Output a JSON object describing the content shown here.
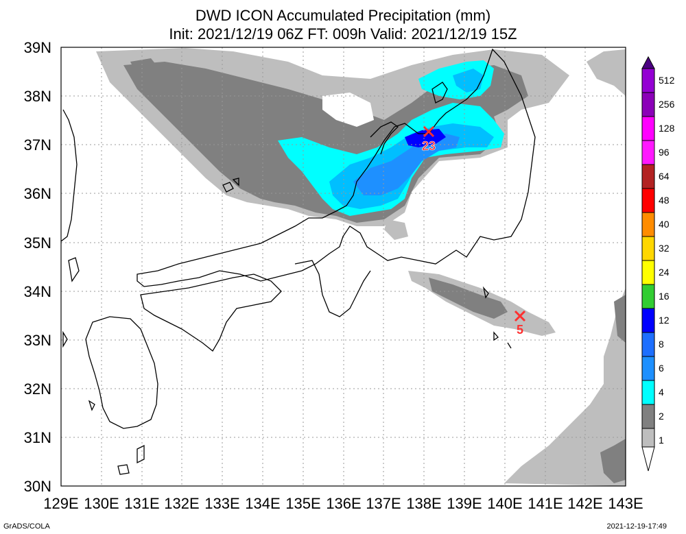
{
  "header": {
    "title": "DWD ICON Accumulated Precipitation (mm)",
    "subtitle": "Init: 2021/12/19 06Z  FT: 009h  Valid: 2021/12/19 15Z"
  },
  "map": {
    "lat_labels": [
      "39N",
      "38N",
      "37N",
      "36N",
      "35N",
      "34N",
      "33N",
      "32N",
      "31N",
      "30N"
    ],
    "lon_labels": [
      "129E",
      "130E",
      "131E",
      "132E",
      "133E",
      "134E",
      "135E",
      "136E",
      "137E",
      "138E",
      "139E",
      "140E",
      "141E",
      "142E",
      "143E"
    ],
    "markers": [
      {
        "label": "23",
        "color": "#ff3030"
      },
      {
        "label": "5",
        "color": "#ff3030"
      }
    ]
  },
  "colorbar": {
    "levels": [
      "512",
      "256",
      "128",
      "96",
      "64",
      "48",
      "40",
      "32",
      "24",
      "16",
      "12",
      "8",
      "6",
      "4",
      "2",
      "1"
    ],
    "colors": [
      "#9400d3",
      "#c71585",
      "#ff00ff",
      "#b22222",
      "#ff0000",
      "#ff8c00",
      "#ffa500",
      "#ffd700",
      "#ffff00",
      "#32cd32",
      "#0000ff",
      "#1e90ff",
      "#00bfff",
      "#00ffff",
      "#808080",
      "#bebebe",
      "#ffffff"
    ]
  },
  "footer": {
    "left": "GrADS/COLA",
    "right": "2021-12-19-17:49"
  }
}
